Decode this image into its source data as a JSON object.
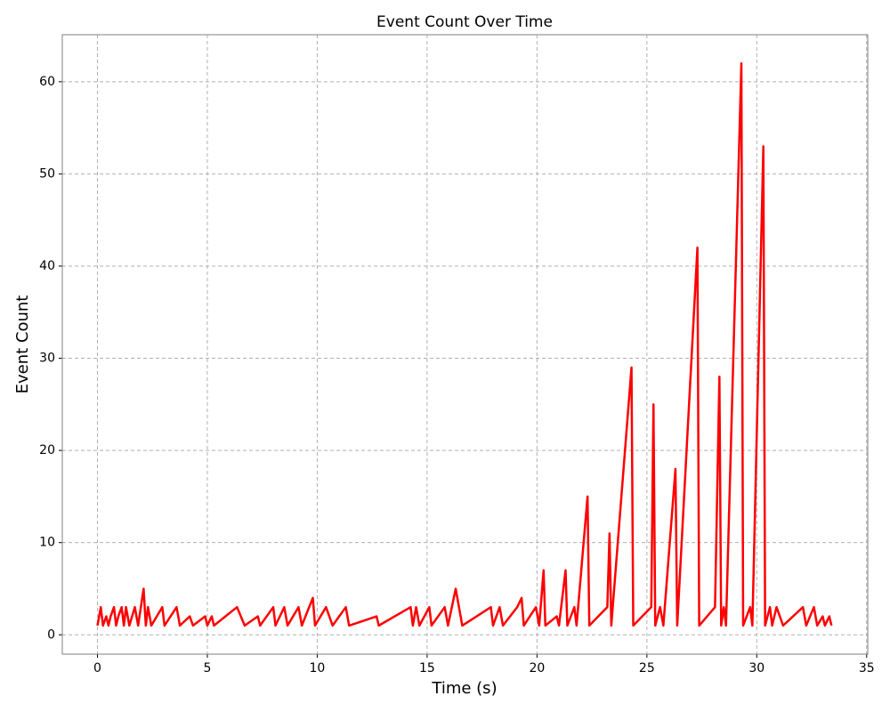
{
  "chart_data": {
    "type": "line",
    "title": "Event Count Over Time",
    "x_label": "Time (s)",
    "y_label": "Event Count",
    "x": [
      0,
      0.15,
      0.25,
      0.4,
      0.5,
      0.6,
      0.75,
      0.85,
      0.95,
      1.1,
      1.2,
      1.3,
      1.45,
      1.7,
      1.85,
      2.1,
      2.2,
      2.3,
      2.45,
      2.95,
      3.05,
      3.6,
      3.75,
      4.2,
      4.35,
      4.9,
      5.0,
      5.2,
      5.3,
      6.35,
      6.7,
      7.3,
      7.4,
      8.0,
      8.1,
      8.5,
      8.65,
      9.15,
      9.3,
      9.8,
      9.9,
      10.4,
      10.7,
      11.3,
      11.45,
      12.7,
      12.8,
      14.25,
      14.35,
      14.5,
      14.65,
      15.1,
      15.2,
      15.8,
      15.95,
      16.3,
      16.6,
      17.9,
      18.0,
      18.3,
      18.45,
      19.1,
      19.3,
      19.4,
      19.95,
      20.1,
      20.3,
      20.38,
      20.9,
      21.0,
      21.3,
      21.38,
      21.7,
      21.8,
      22.3,
      22.38,
      23.2,
      23.3,
      23.38,
      24.3,
      24.38,
      25.2,
      25.3,
      25.38,
      25.6,
      25.75,
      26.3,
      26.38,
      27.3,
      27.38,
      28.1,
      28.3,
      28.38,
      28.5,
      28.6,
      29.3,
      29.38,
      29.7,
      29.8,
      30.3,
      30.38,
      30.6,
      30.7,
      30.9,
      31.2,
      32.1,
      32.25,
      32.6,
      32.75,
      33.0,
      33.1,
      33.3,
      33.4
    ],
    "series": [
      {
        "name": "Event Count",
        "color": "#ff0000",
        "values": [
          1,
          3,
          1,
          2,
          1,
          2,
          3,
          1,
          2,
          3,
          1,
          3,
          1,
          3,
          1,
          5,
          1,
          3,
          1,
          3,
          1,
          3,
          1,
          2,
          1,
          2,
          1,
          2,
          1,
          3,
          1,
          2,
          1,
          3,
          1,
          3,
          1,
          3,
          1,
          4,
          1,
          3,
          1,
          3,
          1,
          2,
          1,
          3,
          1,
          3,
          1,
          3,
          1,
          3,
          1,
          5,
          1,
          3,
          1,
          3,
          1,
          3,
          4,
          1,
          3,
          1,
          7,
          1,
          2,
          1,
          7,
          1,
          3,
          1,
          15,
          1,
          3,
          11,
          1,
          29,
          1,
          3,
          25,
          1,
          3,
          1,
          18,
          1,
          42,
          1,
          3,
          28,
          1,
          3,
          1,
          62,
          1,
          3,
          1,
          53,
          1,
          3,
          1,
          3,
          1,
          3,
          1,
          3,
          1,
          2,
          1,
          2,
          1
        ]
      }
    ],
    "xlim": [
      -1.6,
      35.05
    ],
    "ylim": [
      -2.1,
      65.1
    ],
    "xticks": [
      0,
      5,
      10,
      15,
      20,
      25,
      30,
      35
    ],
    "yticks": [
      0,
      10,
      20,
      30,
      40,
      50,
      60
    ],
    "grid": true
  }
}
